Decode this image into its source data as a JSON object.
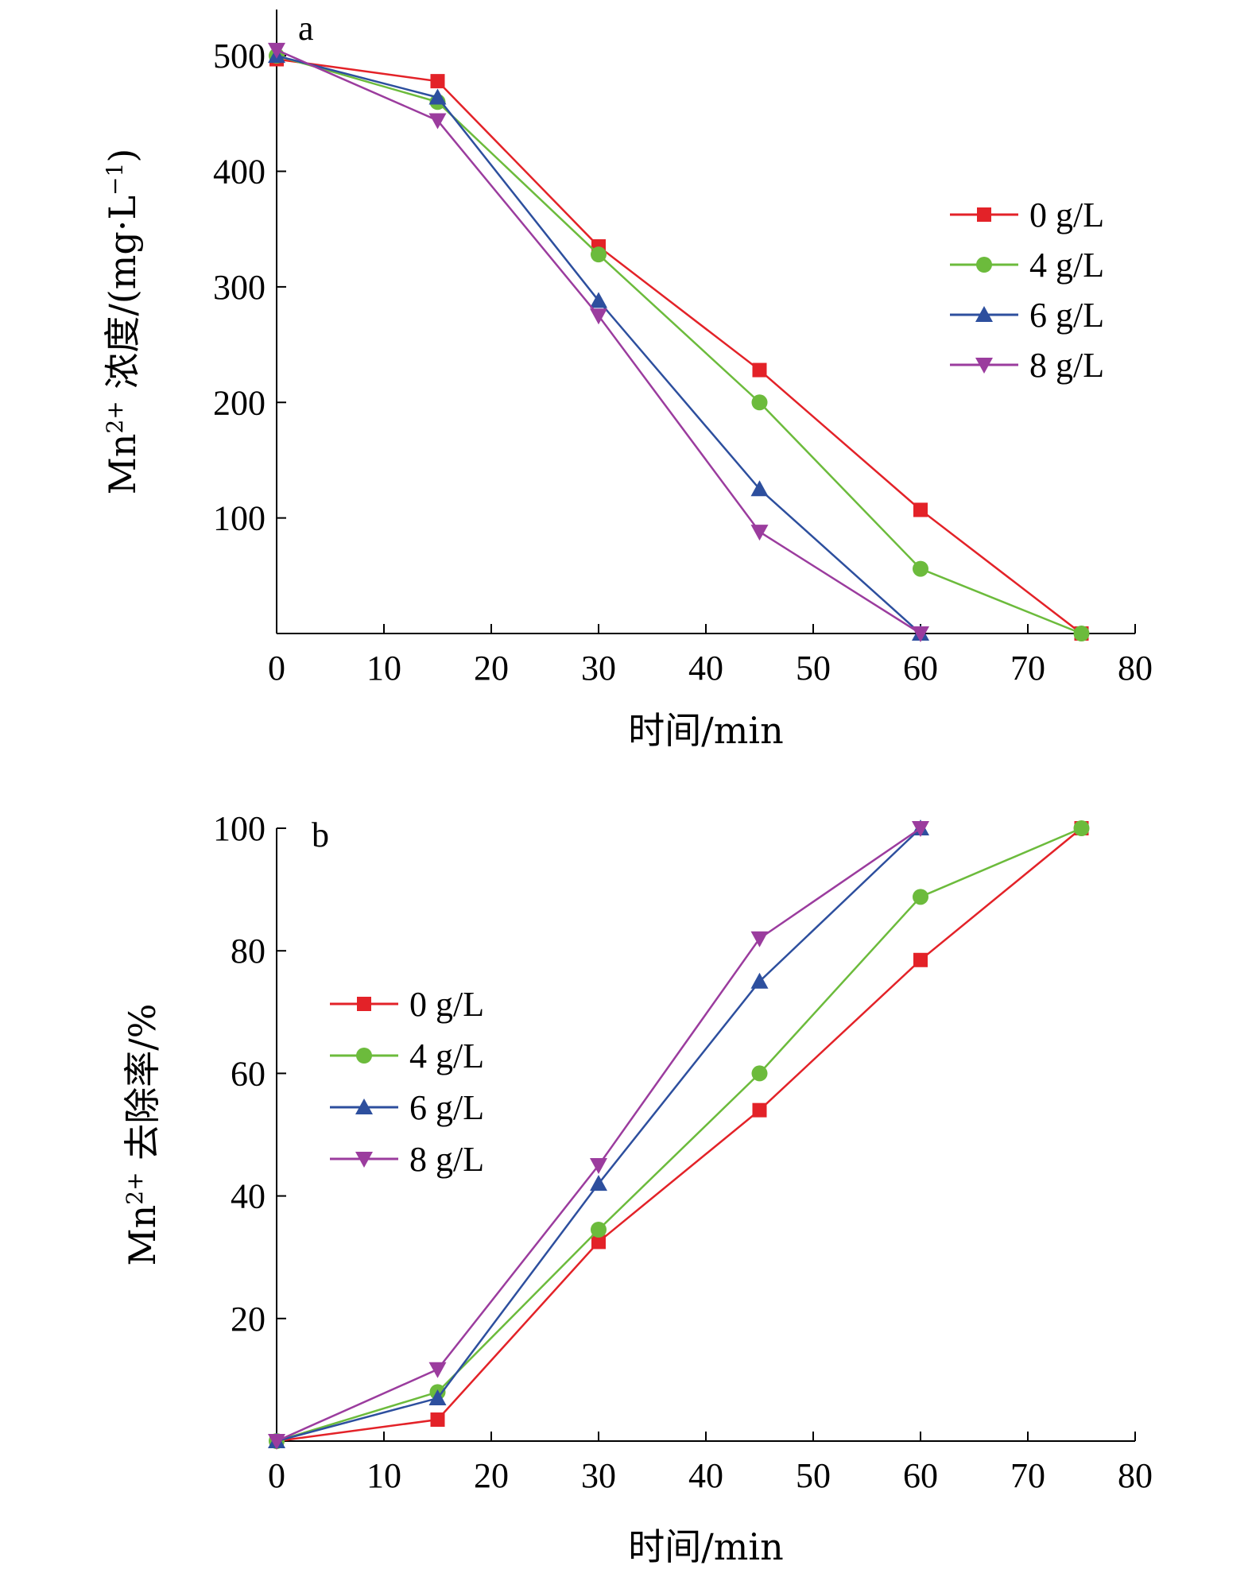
{
  "chart_data": [
    {
      "type": "line",
      "panel_label": "a",
      "xlabel": "时间/min",
      "ylabel": {
        "prefix": "Mn",
        "sup": "2+",
        "rest": " 浓度/(mg·L",
        "unit_sup": "−1",
        "close": ")"
      },
      "xlim": [
        0,
        80
      ],
      "ylim": [
        0,
        540
      ],
      "xticks": [
        0,
        10,
        20,
        30,
        40,
        50,
        60,
        70,
        80
      ],
      "yticks": [
        100,
        200,
        300,
        400,
        500
      ],
      "legend_position": "right",
      "series": [
        {
          "name": "0 g/L",
          "color": "#e32228",
          "marker": "square",
          "x": [
            0,
            15,
            30,
            45,
            60,
            75
          ],
          "y": [
            497,
            478,
            335,
            228,
            107,
            0
          ]
        },
        {
          "name": "4 g/L",
          "color": "#6cbb3c",
          "marker": "circle",
          "x": [
            0,
            15,
            30,
            45,
            60,
            75
          ],
          "y": [
            500,
            460,
            328,
            200,
            56,
            0
          ]
        },
        {
          "name": "6 g/L",
          "color": "#2d4f9e",
          "marker": "triangle-up",
          "x": [
            0,
            15,
            30,
            45,
            60
          ],
          "y": [
            500,
            464,
            288,
            125,
            0
          ]
        },
        {
          "name": "8 g/L",
          "color": "#9b3c9e",
          "marker": "triangle-down",
          "x": [
            0,
            15,
            30,
            45,
            60
          ],
          "y": [
            505,
            444,
            275,
            88,
            0
          ]
        }
      ]
    },
    {
      "type": "line",
      "panel_label": "b",
      "xlabel": "时间/min",
      "ylabel": {
        "prefix": "Mn",
        "sup": "2+",
        "rest": " 去除率/%"
      },
      "xlim": [
        0,
        80
      ],
      "ylim": [
        0,
        100
      ],
      "xticks": [
        0,
        10,
        20,
        30,
        40,
        50,
        60,
        70,
        80
      ],
      "yticks": [
        20,
        40,
        60,
        80,
        100
      ],
      "legend_position": "left",
      "series": [
        {
          "name": "0 g/L",
          "color": "#e32228",
          "marker": "square",
          "x": [
            0,
            15,
            30,
            45,
            60,
            75
          ],
          "y": [
            0,
            3.5,
            32.5,
            54,
            78.5,
            100
          ]
        },
        {
          "name": "4 g/L",
          "color": "#6cbb3c",
          "marker": "circle",
          "x": [
            0,
            15,
            30,
            45,
            60,
            75
          ],
          "y": [
            0,
            8,
            34.5,
            60,
            88.8,
            100
          ]
        },
        {
          "name": "6 g/L",
          "color": "#2d4f9e",
          "marker": "triangle-up",
          "x": [
            0,
            15,
            30,
            45,
            60
          ],
          "y": [
            0,
            7,
            42,
            75,
            100
          ]
        },
        {
          "name": "8 g/L",
          "color": "#9b3c9e",
          "marker": "triangle-down",
          "x": [
            0,
            15,
            30,
            45,
            60
          ],
          "y": [
            0,
            11.7,
            45,
            82,
            100
          ]
        }
      ]
    }
  ]
}
